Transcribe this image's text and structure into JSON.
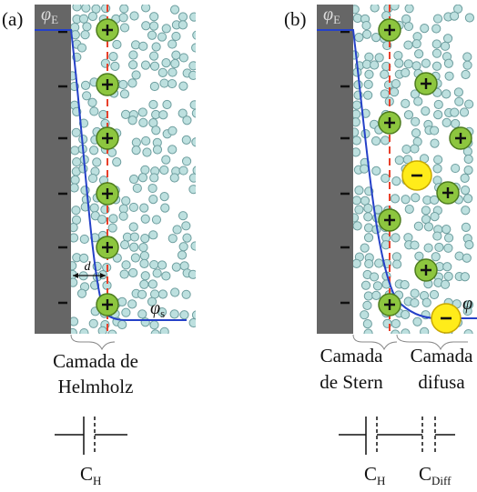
{
  "panels": [
    {
      "label": "(a)",
      "phi_e": {
        "symbol": "φ",
        "sub": "E"
      },
      "phi_s": {
        "symbol": "φ",
        "sub": "s"
      },
      "distance": "d",
      "layers": [
        {
          "lines": [
            "Camada de",
            "Helmholz"
          ]
        }
      ],
      "capacitors": [
        {
          "symbol": "C",
          "sub": "H"
        }
      ]
    },
    {
      "label": "(b)",
      "phi_e": {
        "symbol": "φ",
        "sub": "E"
      },
      "phi_s": {
        "symbol": "φ"
      },
      "layers": [
        {
          "lines": [
            "Camada",
            "de Stern"
          ]
        },
        {
          "lines": [
            "Camada",
            "difusa"
          ]
        }
      ],
      "capacitors": [
        {
          "symbol": "C",
          "sub": "H"
        },
        {
          "symbol": "C",
          "sub": "Diff"
        }
      ]
    }
  ]
}
